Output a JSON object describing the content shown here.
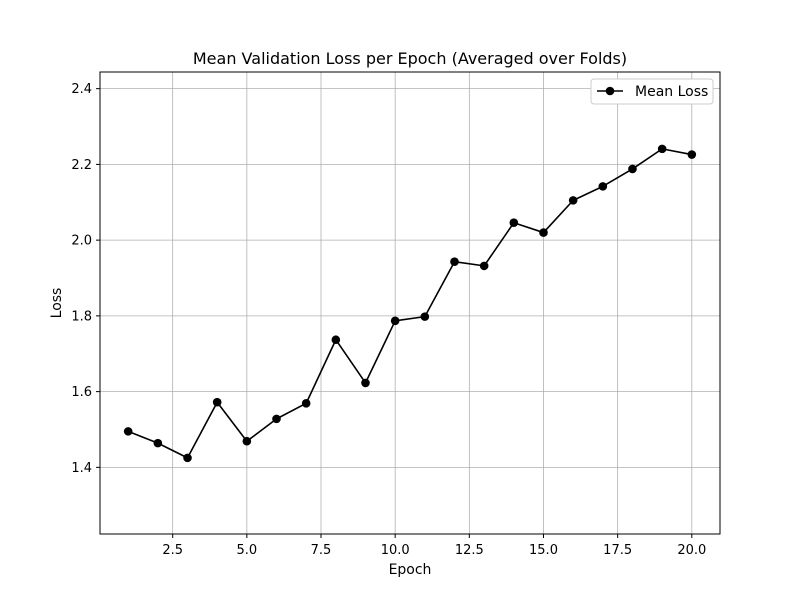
{
  "chart_data": {
    "type": "line",
    "title": "Mean Validation Loss per Epoch (Averaged over Folds)",
    "xlabel": "Epoch",
    "ylabel": "Loss",
    "xlim": [
      0.05,
      20.95
    ],
    "ylim": [
      1.224,
      2.444
    ],
    "xticks": [
      2.5,
      5.0,
      7.5,
      10.0,
      12.5,
      15.0,
      17.5,
      20.0
    ],
    "xtick_labels": [
      "2.5",
      "5.0",
      "7.5",
      "10.0",
      "12.5",
      "15.0",
      "17.5",
      "20.0"
    ],
    "yticks": [
      1.4,
      1.6,
      1.8,
      2.0,
      2.2,
      2.4
    ],
    "ytick_labels": [
      "1.4",
      "1.6",
      "1.8",
      "2.0",
      "2.2",
      "2.4"
    ],
    "grid": true,
    "legend": {
      "position": "top-right",
      "entries": [
        "Mean Loss"
      ]
    },
    "series": [
      {
        "name": "Mean Loss",
        "color": "#000000",
        "marker": "circle",
        "x": [
          1,
          2,
          3,
          4,
          5,
          6,
          7,
          8,
          9,
          10,
          11,
          12,
          13,
          14,
          15,
          16,
          17,
          18,
          19,
          20
        ],
        "values": [
          1.495,
          1.464,
          1.425,
          1.572,
          1.469,
          1.528,
          1.569,
          1.737,
          1.623,
          1.787,
          1.798,
          1.943,
          1.932,
          2.046,
          2.02,
          2.105,
          2.142,
          2.188,
          2.241,
          2.226
        ]
      }
    ]
  }
}
